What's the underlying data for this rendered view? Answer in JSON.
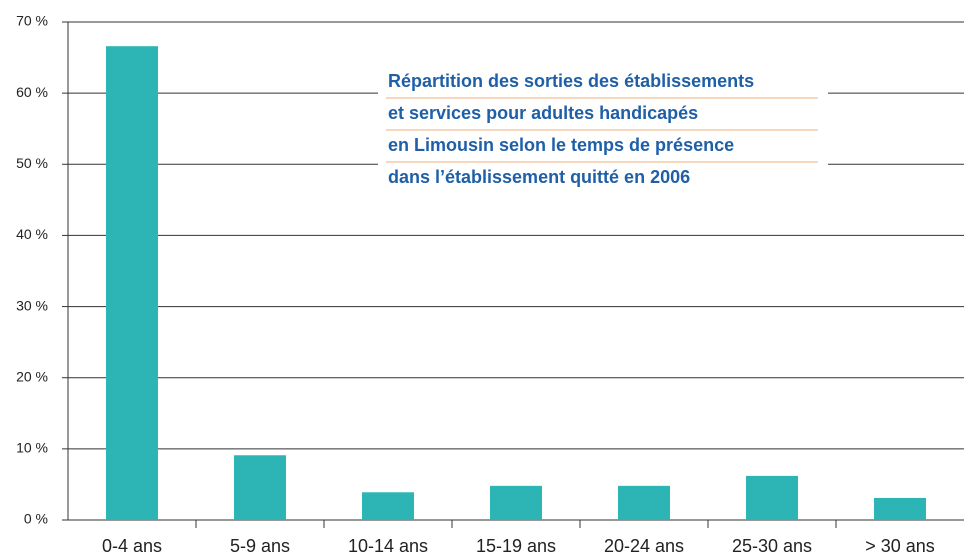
{
  "chart_data": {
    "type": "bar",
    "title": [
      "Répartition des sorties des établissements",
      "et services pour adultes handicapés",
      "en Limousin selon le temps de présence",
      "dans l’établissement quitté en 2006"
    ],
    "categories": [
      "0-4 ans",
      "5-9 ans",
      "10-14 ans",
      "15-19 ans",
      "20-24 ans",
      "25-30 ans",
      "> 30 ans"
    ],
    "values": [
      66.6,
      9.1,
      3.9,
      4.8,
      4.8,
      6.2,
      3.1
    ],
    "color": "#2db5b5",
    "ylim": [
      0,
      70
    ],
    "yticks": [
      {
        "value": 0,
        "label": "0 %"
      },
      {
        "value": 10,
        "label": "10 %"
      },
      {
        "value": 20,
        "label": "20 %"
      },
      {
        "value": 30,
        "label": "30 %"
      },
      {
        "value": 40,
        "label": "40 %"
      },
      {
        "value": 50,
        "label": "50 %"
      },
      {
        "value": 60,
        "label": "60 %"
      },
      {
        "value": 70,
        "label": "70 %"
      }
    ],
    "grid": true
  }
}
